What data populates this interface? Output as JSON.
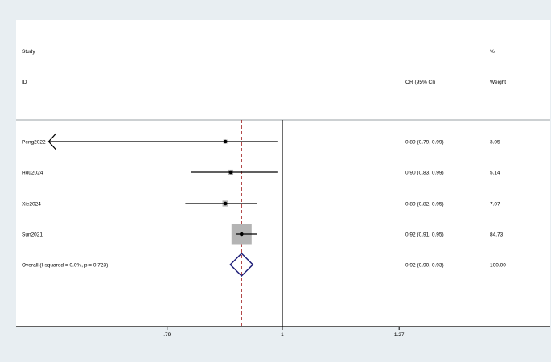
{
  "chart_data": {
    "type": "forest",
    "header": {
      "study_label_top": "Study",
      "study_label_bottom": "ID",
      "effect_label": "OR (95% CI)",
      "weight_label_top": "%",
      "weight_label_bottom": "Weight"
    },
    "x_scale": "log",
    "xlim": [
      0.58,
      1.73
    ],
    "x_ticks": [
      {
        "value": 0.79,
        "label": ".79"
      },
      {
        "value": 1.0,
        "label": "1"
      },
      {
        "value": 1.27,
        "label": "1.27"
      }
    ],
    "null_line": 1.0,
    "overall_line": 0.92,
    "colors": {
      "background": "#e8eef2",
      "panel": "#ffffff",
      "box": "#b4b4b4",
      "diamond": "#1e1e78",
      "overall_line": "#a01e1e"
    },
    "studies": [
      {
        "name": "Peng2022",
        "or": 0.89,
        "lower": 0.79,
        "upper": 0.99,
        "ci_text": "0.89 (0.79, 0.99)",
        "weight": 3.05,
        "weight_text": "3.05",
        "arrow_left": true
      },
      {
        "name": "Hou2024",
        "or": 0.9,
        "lower": 0.83,
        "upper": 0.99,
        "ci_text": "0.90 (0.83, 0.99)",
        "weight": 5.14,
        "weight_text": "5.14",
        "arrow_left": false
      },
      {
        "name": "Xie2024",
        "or": 0.89,
        "lower": 0.82,
        "upper": 0.95,
        "ci_text": "0.89 (0.82, 0.95)",
        "weight": 7.07,
        "weight_text": "7.07",
        "arrow_left": false
      },
      {
        "name": "Sun2021",
        "or": 0.92,
        "lower": 0.91,
        "upper": 0.95,
        "ci_text": "0.92 (0.91, 0.95)",
        "weight": 84.73,
        "weight_text": "84.73",
        "arrow_left": false
      }
    ],
    "overall": {
      "label": "Overall  (I-squared = 0.0%, p = 0.723)",
      "or": 0.92,
      "lower": 0.9,
      "upper": 0.93,
      "ci_text": "0.92 (0.90, 0.93)",
      "weight_text": "100.00"
    }
  }
}
